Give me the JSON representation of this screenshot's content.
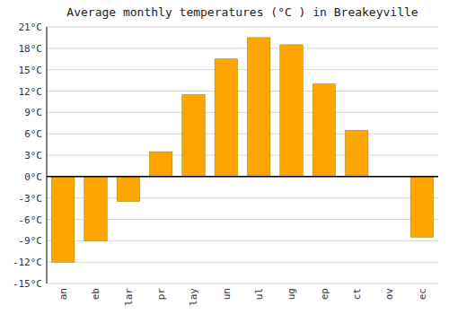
{
  "chart_data": {
    "type": "bar",
    "title": "Average monthly temperatures (°C ) in Breakeyville",
    "categories": [
      "an",
      "eb",
      "lar",
      "pr",
      "lay",
      "un",
      "ul",
      "ug",
      "ep",
      "ct",
      "ov",
      "ec"
    ],
    "values": [
      -12,
      -9,
      -3.5,
      3.5,
      11.5,
      16.5,
      19.5,
      18.5,
      13,
      6.5,
      0,
      -8.5
    ],
    "color": "#FFA500",
    "ylim": [
      -15,
      21
    ],
    "yticks": [
      {
        "value": -15,
        "label": "-15°C"
      },
      {
        "value": -12,
        "label": "-12°C"
      },
      {
        "value": -9,
        "label": "-9°C"
      },
      {
        "value": -6,
        "label": "-6°C"
      },
      {
        "value": -3,
        "label": "-3°C"
      },
      {
        "value": 0,
        "label": "0°C"
      },
      {
        "value": 3,
        "label": "3°C"
      },
      {
        "value": 6,
        "label": "6°C"
      },
      {
        "value": 9,
        "label": "9°C"
      },
      {
        "value": 12,
        "label": "12°C"
      },
      {
        "value": 15,
        "label": "15°C"
      },
      {
        "value": 18,
        "label": "18°C"
      },
      {
        "value": 21,
        "label": "21°C"
      }
    ],
    "grid": true
  }
}
